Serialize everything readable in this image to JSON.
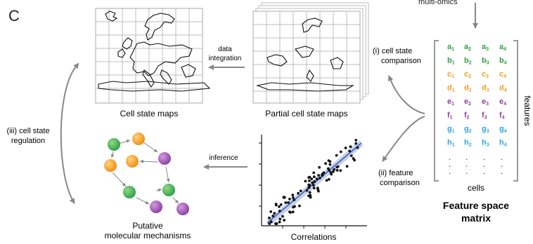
{
  "panel_letter": "C",
  "top_label": "multi-omics",
  "labels": {
    "cell_state_maps": "Cell state maps",
    "partial_cell_state_maps": "Partial cell state maps",
    "data_integration_1": "data",
    "data_integration_2": "integration",
    "inference": "inference",
    "correlations": "Correlations",
    "putative_1": "Putative",
    "putative_2": "molecular mechanisms",
    "regulation_1": "(iii) cell state",
    "regulation_2": "regulation",
    "comparison_1a": "(i) cell state",
    "comparison_1b": "comparison",
    "comparison_2a": "(ii) feature",
    "comparison_2b": "comparison",
    "features": "features",
    "cells": "cells",
    "matrix_title_1": "Feature space",
    "matrix_title_2": "matrix"
  },
  "matrix": {
    "rows": [
      {
        "letter": "a",
        "color": "#2e9e44"
      },
      {
        "letter": "b",
        "color": "#2e9e44"
      },
      {
        "letter": "c",
        "color": "#f39a1f"
      },
      {
        "letter": "d",
        "color": "#f39a1f"
      },
      {
        "letter": "e",
        "color": "#8e3fa3"
      },
      {
        "letter": "f",
        "color": "#8e3fa3"
      },
      {
        "letter": "g",
        "color": "#2aa7e0"
      },
      {
        "letter": "h",
        "color": "#2aa7e0"
      }
    ],
    "subscripts": [
      "1",
      "2",
      "3",
      "4"
    ],
    "ellipsis": "."
  },
  "colors": {
    "green": "#3fae49",
    "orange": "#f7a128",
    "purple": "#9b4fb0",
    "arrow": "#888888",
    "grid": "#999999",
    "fit_band": "#b7c6e6",
    "fit_line": "#3b55b8"
  }
}
